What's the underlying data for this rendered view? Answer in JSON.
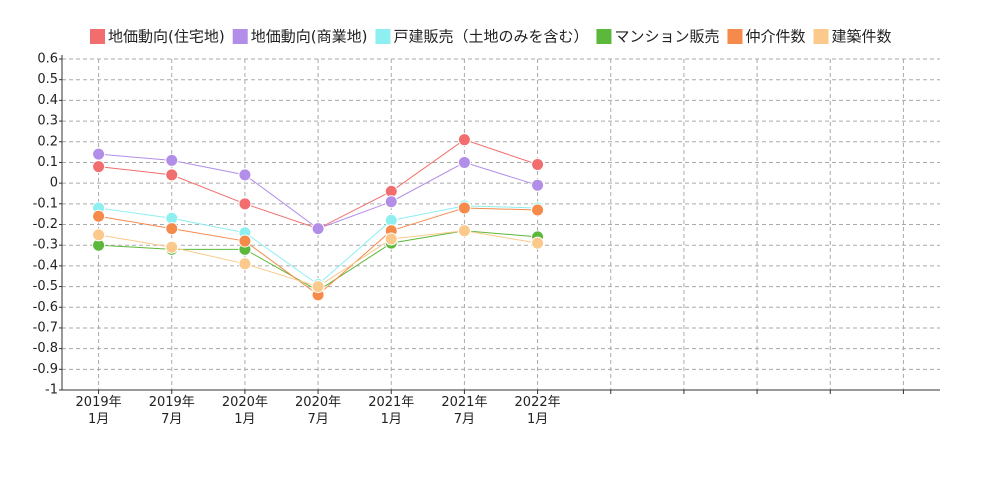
{
  "chart_data": {
    "type": "line",
    "categories": [
      [
        "2019年",
        "1月"
      ],
      [
        "2019年",
        "7月"
      ],
      [
        "2020年",
        "1月"
      ],
      [
        "2020年",
        "7月"
      ],
      [
        "2021年",
        "1月"
      ],
      [
        "2021年",
        "7月"
      ],
      [
        "2022年",
        "1月"
      ],
      null,
      null,
      null,
      null,
      null
    ],
    "series": [
      {
        "name": "地価動向(住宅地)",
        "color": "#f26d6d",
        "values": [
          0.08,
          0.04,
          -0.1,
          -0.22,
          -0.04,
          0.21,
          0.09,
          null,
          null,
          null,
          null,
          null
        ]
      },
      {
        "name": "地価動向(商業地)",
        "color": "#b28ee8",
        "values": [
          0.14,
          0.11,
          0.04,
          -0.22,
          -0.09,
          0.1,
          -0.01,
          null,
          null,
          null,
          null,
          null
        ]
      },
      {
        "name": "戸建販売（土地のみを含む）",
        "color": "#8eeff0",
        "values": [
          -0.12,
          -0.17,
          -0.24,
          -0.49,
          -0.18,
          -0.11,
          -0.12,
          null,
          null,
          null,
          null,
          null
        ]
      },
      {
        "name": "マンション販売",
        "color": "#5cb83a",
        "values": [
          -0.3,
          -0.32,
          -0.32,
          -0.52,
          -0.29,
          -0.23,
          -0.26,
          null,
          null,
          null,
          null,
          null
        ]
      },
      {
        "name": "仲介件数",
        "color": "#f58a4b",
        "values": [
          -0.16,
          -0.22,
          -0.28,
          -0.54,
          -0.23,
          -0.12,
          -0.13,
          null,
          null,
          null,
          null,
          null
        ]
      },
      {
        "name": "建築件数",
        "color": "#fbc98b",
        "values": [
          -0.25,
          -0.31,
          -0.39,
          -0.5,
          -0.27,
          -0.23,
          -0.29,
          null,
          null,
          null,
          null,
          null
        ]
      }
    ],
    "ylim": [
      -1,
      0.6
    ],
    "yticks": [
      0.6,
      0.5,
      0.4,
      0.3,
      0.2,
      0.1,
      0,
      -0.1,
      -0.2,
      -0.3,
      -0.4,
      -0.5,
      -0.6,
      -0.7,
      -0.8,
      -0.9,
      -1
    ],
    "grid": true,
    "legend": "top"
  }
}
